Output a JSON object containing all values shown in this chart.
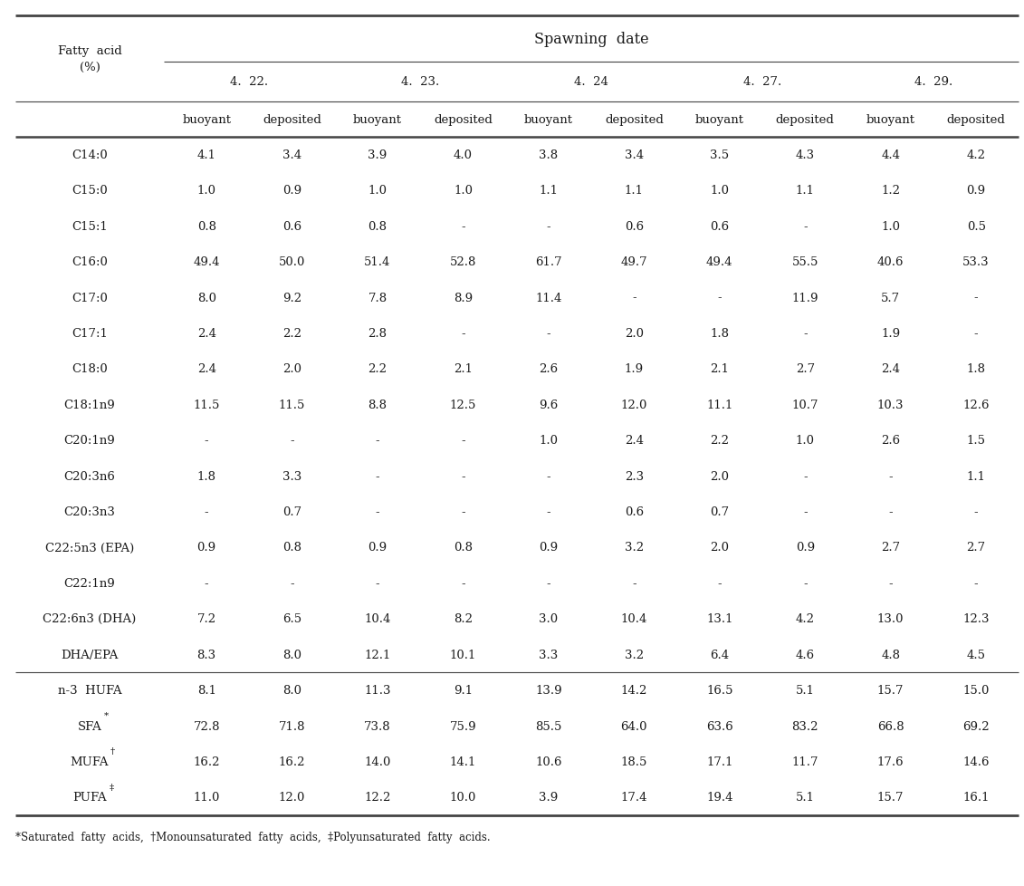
{
  "title": "Spawning  date",
  "date_labels": [
    "4.  22.",
    "4.  23.",
    "4.  24",
    "4.  27.",
    "4.  29."
  ],
  "sub_labels": [
    "buoyant",
    "deposited",
    "buoyant",
    "deposited",
    "buoyant",
    "deposited",
    "buoyant",
    "deposited",
    "buoyant",
    "deposited"
  ],
  "rows": [
    [
      "C14:0",
      "4.1",
      "3.4",
      "3.9",
      "4.0",
      "3.8",
      "3.4",
      "3.5",
      "4.3",
      "4.4",
      "4.2"
    ],
    [
      "C15:0",
      "1.0",
      "0.9",
      "1.0",
      "1.0",
      "1.1",
      "1.1",
      "1.0",
      "1.1",
      "1.2",
      "0.9"
    ],
    [
      "C15:1",
      "0.8",
      "0.6",
      "0.8",
      "-",
      "-",
      "0.6",
      "0.6",
      "-",
      "1.0",
      "0.5"
    ],
    [
      "C16:0",
      "49.4",
      "50.0",
      "51.4",
      "52.8",
      "61.7",
      "49.7",
      "49.4",
      "55.5",
      "40.6",
      "53.3"
    ],
    [
      "C17:0",
      "8.0",
      "9.2",
      "7.8",
      "8.9",
      "11.4",
      "-",
      "-",
      "11.9",
      "5.7",
      "-"
    ],
    [
      "C17:1",
      "2.4",
      "2.2",
      "2.8",
      "-",
      "-",
      "2.0",
      "1.8",
      "-",
      "1.9",
      "-"
    ],
    [
      "C18:0",
      "2.4",
      "2.0",
      "2.2",
      "2.1",
      "2.6",
      "1.9",
      "2.1",
      "2.7",
      "2.4",
      "1.8"
    ],
    [
      "C18:1n9",
      "11.5",
      "11.5",
      "8.8",
      "12.5",
      "9.6",
      "12.0",
      "11.1",
      "10.7",
      "10.3",
      "12.6"
    ],
    [
      "C20:1n9",
      "-",
      "-",
      "-",
      "-",
      "1.0",
      "2.4",
      "2.2",
      "1.0",
      "2.6",
      "1.5"
    ],
    [
      "C20:3n6",
      "1.8",
      "3.3",
      "-",
      "-",
      "-",
      "2.3",
      "2.0",
      "-",
      "-",
      "1.1"
    ],
    [
      "C20:3n3",
      "-",
      "0.7",
      "-",
      "-",
      "-",
      "0.6",
      "0.7",
      "-",
      "-",
      "-"
    ],
    [
      "C22:5n3 (EPA)",
      "0.9",
      "0.8",
      "0.9",
      "0.8",
      "0.9",
      "3.2",
      "2.0",
      "0.9",
      "2.7",
      "2.7"
    ],
    [
      "C22:1n9",
      "-",
      "-",
      "-",
      "-",
      "-",
      "-",
      "-",
      "-",
      "-",
      "-"
    ],
    [
      "C22:6n3 (DHA)",
      "7.2",
      "6.5",
      "10.4",
      "8.2",
      "3.0",
      "10.4",
      "13.1",
      "4.2",
      "13.0",
      "12.3"
    ],
    [
      "DHA/EPA",
      "8.3",
      "8.0",
      "12.1",
      "10.1",
      "3.3",
      "3.2",
      "6.4",
      "4.6",
      "4.8",
      "4.5"
    ]
  ],
  "separator_rows": [
    [
      "n-3  HUFA",
      "8.1",
      "8.0",
      "11.3",
      "9.1",
      "13.9",
      "14.2",
      "16.5",
      "5.1",
      "15.7",
      "15.0"
    ],
    [
      "SFA",
      "72.8",
      "71.8",
      "73.8",
      "75.9",
      "85.5",
      "64.0",
      "63.6",
      "83.2",
      "66.8",
      "69.2"
    ],
    [
      "MUFA",
      "16.2",
      "16.2",
      "14.0",
      "14.1",
      "10.6",
      "18.5",
      "17.1",
      "11.7",
      "17.6",
      "14.6"
    ],
    [
      "PUFA",
      "11.0",
      "12.0",
      "12.2",
      "10.0",
      "3.9",
      "17.4",
      "19.4",
      "5.1",
      "15.7",
      "16.1"
    ]
  ],
  "sep_superscripts": [
    "",
    "*",
    "†",
    "‡"
  ],
  "footnote": "*Saturated  fatty  acids,  †Monounsaturated  fatty  acids,  ‡Polyunsaturated  fatty  acids.",
  "background_color": "#ffffff",
  "text_color": "#1a1a1a",
  "line_color": "#444444"
}
